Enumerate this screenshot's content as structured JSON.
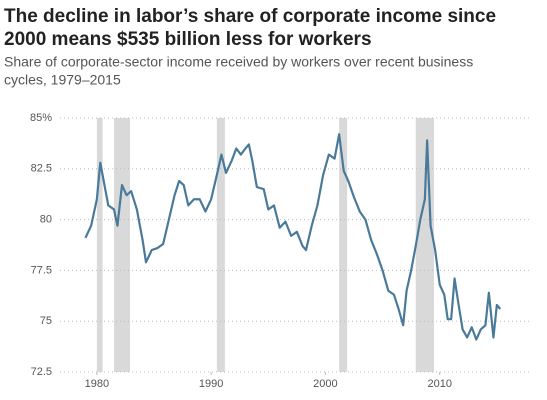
{
  "chart_data": {
    "type": "line",
    "title": [
      "The decline in labor’s share of corporate income since",
      "2000 means $535 billion less for workers"
    ],
    "subtitle": [
      "Share of corporate-sector income received by workers over recent business",
      "cycles, 1979–2015"
    ],
    "x": [
      1979.0,
      1979.5,
      1980.0,
      1980.3,
      1980.6,
      1981.0,
      1981.5,
      1981.8,
      1982.2,
      1982.6,
      1983.0,
      1983.5,
      1984.0,
      1984.3,
      1984.8,
      1985.3,
      1985.8,
      1986.3,
      1986.8,
      1987.2,
      1987.6,
      1988.0,
      1988.5,
      1989.0,
      1989.5,
      1990.0,
      1990.5,
      1990.9,
      1991.3,
      1991.8,
      1992.2,
      1992.6,
      1993.0,
      1993.3,
      1993.6,
      1994.0,
      1994.6,
      1995.0,
      1995.5,
      1996.0,
      1996.5,
      1997.0,
      1997.5,
      1998.0,
      1998.3,
      1998.8,
      1999.3,
      1999.8,
      2000.3,
      2000.8,
      2001.2,
      2001.6,
      2002.0,
      2002.5,
      2003.0,
      2003.5,
      2004.0,
      2004.5,
      2005.0,
      2005.5,
      2006.0,
      2006.4,
      2006.8,
      2007.1,
      2007.5,
      2007.9,
      2008.3,
      2008.7,
      2008.9,
      2009.2,
      2009.6,
      2010.0,
      2010.4,
      2010.7,
      2011.0,
      2011.3,
      2011.6,
      2012.0,
      2012.4,
      2012.8,
      2013.2,
      2013.6,
      2014.0,
      2014.3,
      2014.7,
      2015.0,
      2015.3
    ],
    "series": [
      {
        "name": "Labor share",
        "color": "#4a7a9a",
        "values": [
          79.1,
          79.7,
          81.0,
          82.8,
          81.9,
          80.7,
          80.5,
          79.7,
          81.7,
          81.2,
          81.4,
          80.5,
          79.0,
          77.9,
          78.5,
          78.6,
          78.8,
          80.0,
          81.2,
          81.9,
          81.7,
          80.7,
          81.0,
          81.0,
          80.4,
          81.0,
          82.2,
          83.2,
          82.3,
          82.9,
          83.5,
          83.2,
          83.5,
          83.7,
          82.9,
          81.6,
          81.5,
          80.5,
          80.7,
          79.6,
          79.9,
          79.2,
          79.4,
          78.7,
          78.5,
          79.7,
          80.7,
          82.2,
          83.2,
          83.0,
          84.2,
          82.4,
          81.9,
          81.1,
          80.4,
          80.0,
          79.0,
          78.3,
          77.5,
          76.5,
          76.3,
          75.6,
          74.8,
          76.5,
          77.5,
          78.7,
          80.0,
          81.0,
          83.9,
          79.7,
          78.5,
          76.8,
          76.3,
          75.1,
          75.1,
          77.1,
          76.0,
          74.6,
          74.2,
          74.7,
          74.1,
          74.6,
          74.8,
          76.4,
          74.2,
          75.8,
          75.6
        ]
      }
    ],
    "recessions": [
      [
        1980.0,
        1980.5
      ],
      [
        1981.5,
        1982.9
      ],
      [
        1990.5,
        1991.2
      ],
      [
        2001.2,
        2001.9
      ],
      [
        2007.9,
        2009.5
      ]
    ],
    "recession_color": "#d9d9d9",
    "xlim": [
      1978,
      2016.5
    ],
    "xticks": [
      1980,
      1990,
      2000,
      2010
    ],
    "ylim": [
      72.5,
      85
    ],
    "yticks": [
      72.5,
      75,
      77.5,
      80,
      82.5,
      {
        "value": 85,
        "label": "85%"
      }
    ],
    "grid": true
  }
}
